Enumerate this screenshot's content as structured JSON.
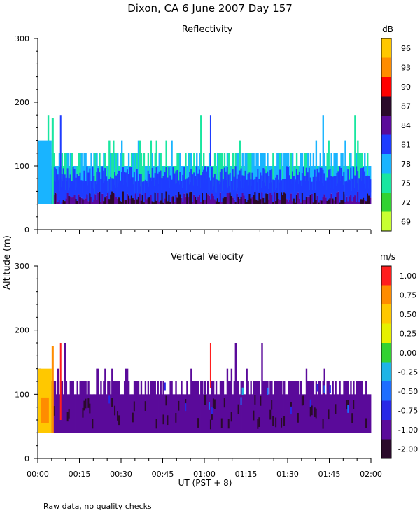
{
  "figure": {
    "title": "Dixon, CA  6 June 2007  Day 157",
    "ylabel": "Altitude (m)",
    "xlabel": "UT  (PST + 8)",
    "footnote": "Raw data, no quality checks"
  },
  "chart_data": [
    {
      "type": "heatmap",
      "title": "Reflectivity",
      "xlabel": "UT  (PST + 8)",
      "ylabel": "Altitude (m)",
      "x_range_minutes": [
        0,
        120
      ],
      "ylim": [
        0,
        300
      ],
      "xticks": [
        "00:00",
        "00:15",
        "00:30",
        "00:45",
        "01:00",
        "01:15",
        "01:30",
        "01:45",
        "02:00"
      ],
      "yticks": [
        0,
        100,
        200,
        300
      ],
      "colorbar": {
        "unit": "dB",
        "labels": [
          "96",
          "93",
          "90",
          "87",
          "84",
          "81",
          "78",
          "75",
          "72",
          "69"
        ],
        "colors": [
          "#ffc800",
          "#ff8c00",
          "#ff0000",
          "#2a0a2a",
          "#5a0a9a",
          "#1e3cff",
          "#19b4ff",
          "#19e6a0",
          "#32d232",
          "#c8ff32"
        ]
      },
      "approximate_extent": {
        "echo_base_m": 40,
        "typical_top_m": 120,
        "max_top_m": 180,
        "dominant_value_db": 81,
        "lowest_layer_value_db": 84
      }
    },
    {
      "type": "heatmap",
      "title": "Vertical Velocity",
      "xlabel": "UT  (PST + 8)",
      "ylabel": "Altitude (m)",
      "x_range_minutes": [
        0,
        120
      ],
      "ylim": [
        0,
        300
      ],
      "xticks": [
        "00:00",
        "00:15",
        "00:30",
        "00:45",
        "01:00",
        "01:15",
        "01:30",
        "01:45",
        "02:00"
      ],
      "yticks": [
        0,
        100,
        200,
        300
      ],
      "colorbar": {
        "unit": "m/s",
        "labels": [
          "1.00",
          "0.75",
          "0.50",
          "0.25",
          "0.00",
          "-0.25",
          "-0.50",
          "-0.75",
          "-1.00",
          "-2.00"
        ],
        "colors": [
          "#ff1e1e",
          "#ff8c00",
          "#ffc800",
          "#e6f000",
          "#32d232",
          "#1eb4e6",
          "#1e6eff",
          "#2828e6",
          "#5a0a9a",
          "#2a0a2a"
        ]
      },
      "approximate_extent": {
        "echo_base_m": 40,
        "typical_top_m": 120,
        "max_top_m": 180,
        "dominant_value_ms": -1.0
      }
    }
  ]
}
